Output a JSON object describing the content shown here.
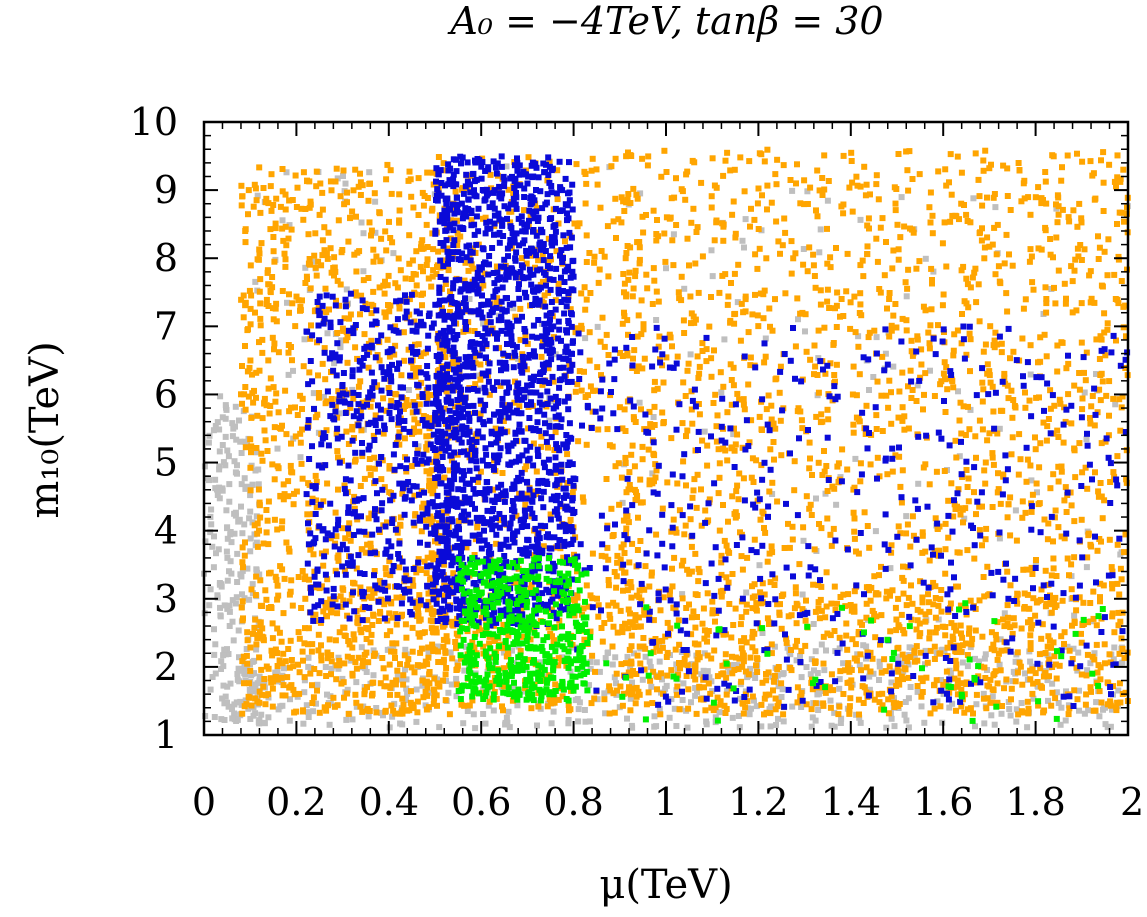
{
  "chart_data": {
    "type": "scatter",
    "title": "A₀ = −4TeV, tanβ = 30",
    "xlabel": "μ(TeV)",
    "ylabel": "m₁₀(TeV)",
    "xlim": [
      0,
      2
    ],
    "ylim": [
      1,
      10
    ],
    "x_ticks": [
      "0",
      "0.2",
      "0.4",
      "0.6",
      "0.8",
      "1",
      "1.2",
      "1.4",
      "1.6",
      "1.8",
      "2"
    ],
    "y_ticks": [
      "1",
      "2",
      "3",
      "4",
      "5",
      "6",
      "7",
      "8",
      "9",
      "10"
    ],
    "grid": false,
    "legend": "none",
    "series": [
      {
        "name": "gray",
        "color": "#bfbfbf",
        "regions": [
          {
            "x": [
              0.0,
              0.12
            ],
            "y": [
              1.2,
              6.0
            ],
            "n": 220
          },
          {
            "x": [
              0.05,
              2.0
            ],
            "y": [
              1.1,
              2.3
            ],
            "n": 520
          },
          {
            "x": [
              0.9,
              2.0
            ],
            "y": [
              1.8,
              9.0
            ],
            "n": 120
          },
          {
            "x": [
              0.1,
              0.9
            ],
            "y": [
              5.0,
              9.4
            ],
            "n": 80
          }
        ]
      },
      {
        "name": "orange",
        "color": "#ffa500",
        "regions": [
          {
            "x": [
              0.08,
              0.55
            ],
            "y": [
              1.3,
              9.4
            ],
            "n": 1000
          },
          {
            "x": [
              0.45,
              0.95
            ],
            "y": [
              1.3,
              9.5
            ],
            "n": 650
          },
          {
            "x": [
              0.9,
              2.0
            ],
            "y": [
              1.3,
              9.6
            ],
            "n": 1700
          },
          {
            "x": [
              0.08,
              2.0
            ],
            "y": [
              1.3,
              3.2
            ],
            "n": 700
          }
        ]
      },
      {
        "name": "blue",
        "color": "#0a0ad8",
        "regions": [
          {
            "x": [
              0.22,
              0.56
            ],
            "y": [
              2.6,
              7.5
            ],
            "n": 520
          },
          {
            "x": [
              0.5,
              0.8
            ],
            "y": [
              2.6,
              9.5
            ],
            "n": 1500
          },
          {
            "x": [
              0.8,
              2.0
            ],
            "y": [
              1.4,
              7.0
            ],
            "n": 430
          }
        ]
      },
      {
        "name": "green",
        "color": "#00f000",
        "regions": [
          {
            "x": [
              0.55,
              0.83
            ],
            "y": [
              1.5,
              3.6
            ],
            "n": 480
          },
          {
            "x": [
              0.83,
              1.95
            ],
            "y": [
              1.2,
              3.0
            ],
            "n": 55
          }
        ]
      }
    ]
  }
}
